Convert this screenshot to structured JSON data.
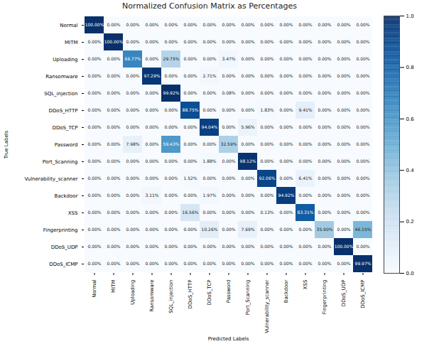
{
  "chart_data": {
    "type": "heatmap",
    "title": "Normalized Confusion Matrix as Percentages",
    "x_label": "Predicted Labels",
    "y_label": "True Labels",
    "categories": [
      "Normal",
      "MITM",
      "Uploading",
      "Ransomware",
      "SQL_injection",
      "DDoS_HTTP",
      "DDoS_TCP",
      "Password",
      "Port_Scanning",
      "Vulnerability_scanner",
      "Backdoor",
      "XSS",
      "Fingerprinting",
      "DDoS_UDP",
      "DDoS_ICMP"
    ],
    "cells": [
      [
        1,
        0,
        0,
        0,
        0,
        0,
        0,
        0,
        0,
        0,
        0,
        0,
        0,
        0,
        0
      ],
      [
        0,
        1,
        0,
        0,
        0,
        0,
        0,
        0,
        0,
        0,
        0,
        0,
        0,
        0,
        0
      ],
      [
        0,
        0,
        0.6677,
        0,
        0.2975,
        0,
        0,
        0.0347,
        0,
        0,
        0,
        0,
        0,
        0,
        0
      ],
      [
        0,
        0,
        0,
        0.9729,
        0,
        0,
        0.0271,
        0,
        0,
        0,
        0,
        0,
        0,
        0,
        0
      ],
      [
        0,
        0,
        0,
        0,
        0.9992,
        0,
        0,
        0.0008,
        0,
        0,
        0,
        0,
        0,
        0,
        0
      ],
      [
        0,
        0,
        0,
        0,
        0,
        0.8875,
        0,
        0,
        0,
        0.0183,
        0,
        0.0941,
        0,
        0,
        0
      ],
      [
        0,
        0,
        0,
        0,
        0,
        0,
        0.9404,
        0,
        0.0596,
        0,
        0,
        0,
        0,
        0,
        0
      ],
      [
        0,
        0,
        0.0798,
        0,
        0.5943,
        0,
        0,
        0.3259,
        0,
        0,
        0,
        0,
        0,
        0,
        0
      ],
      [
        0,
        0,
        0,
        0,
        0,
        0,
        0.0188,
        0,
        0.9812,
        0,
        0,
        0,
        0,
        0,
        0
      ],
      [
        0,
        0,
        0,
        0,
        0,
        0.0152,
        0,
        0,
        0,
        0.9206,
        0,
        0.0641,
        0,
        0,
        0
      ],
      [
        0,
        0,
        0,
        0.0311,
        0,
        0,
        0.0197,
        0,
        0,
        0,
        0.9492,
        0,
        0,
        0,
        0
      ],
      [
        0,
        0,
        0,
        0,
        0,
        0.1656,
        0,
        0,
        0,
        0.0013,
        0,
        0.8331,
        0,
        0,
        0
      ],
      [
        0,
        0,
        0,
        0,
        0,
        0,
        0.1026,
        0,
        0.0769,
        0,
        0,
        0,
        0.359,
        0,
        0.4615
      ],
      [
        0,
        0,
        0,
        0,
        0,
        0,
        0,
        0,
        0,
        0,
        0,
        0,
        0,
        1,
        0
      ],
      [
        0,
        0,
        0,
        0,
        0,
        0,
        0,
        0,
        0,
        0,
        0,
        0,
        0,
        0,
        0.9997
      ]
    ],
    "cell_labels": [
      [
        "100.00%",
        "0.00%",
        "0.00%",
        "0.00%",
        "0.00%",
        "0.00%",
        "0.00%",
        "0.00%",
        "0.00%",
        "0.00%",
        "0.00%",
        "0.00%",
        "0.00%",
        "0.00%",
        "0.00%"
      ],
      [
        "0.00%",
        "100.00%",
        "0.00%",
        "0.00%",
        "0.00%",
        "0.00%",
        "0.00%",
        "0.00%",
        "0.00%",
        "0.00%",
        "0.00%",
        "0.00%",
        "0.00%",
        "0.00%",
        "0.00%"
      ],
      [
        "0.00%",
        "0.00%",
        "66.77%",
        "0.00%",
        "29.75%",
        "0.00%",
        "0.00%",
        "3.47%",
        "0.00%",
        "0.00%",
        "0.00%",
        "0.00%",
        "0.00%",
        "0.00%",
        "0.00%"
      ],
      [
        "0.00%",
        "0.00%",
        "0.00%",
        "97.29%",
        "0.00%",
        "0.00%",
        "2.71%",
        "0.00%",
        "0.00%",
        "0.00%",
        "0.00%",
        "0.00%",
        "0.00%",
        "0.00%",
        "0.00%"
      ],
      [
        "0.00%",
        "0.00%",
        "0.00%",
        "0.00%",
        "99.92%",
        "0.00%",
        "0.00%",
        "0.08%",
        "0.00%",
        "0.00%",
        "0.00%",
        "0.00%",
        "0.00%",
        "0.00%",
        "0.00%"
      ],
      [
        "0.00%",
        "0.00%",
        "0.00%",
        "0.00%",
        "0.00%",
        "88.75%",
        "0.00%",
        "0.00%",
        "0.00%",
        "1.83%",
        "0.00%",
        "9.41%",
        "0.00%",
        "0.00%",
        "0.00%"
      ],
      [
        "0.00%",
        "0.00%",
        "0.00%",
        "0.00%",
        "0.00%",
        "0.00%",
        "94.04%",
        "0.00%",
        "5.96%",
        "0.00%",
        "0.00%",
        "0.00%",
        "0.00%",
        "0.00%",
        "0.00%"
      ],
      [
        "0.00%",
        "0.00%",
        "7.98%",
        "0.00%",
        "59.43%",
        "0.00%",
        "0.00%",
        "32.59%",
        "0.00%",
        "0.00%",
        "0.00%",
        "0.00%",
        "0.00%",
        "0.00%",
        "0.00%"
      ],
      [
        "0.00%",
        "0.00%",
        "0.00%",
        "0.00%",
        "0.00%",
        "0.00%",
        "1.88%",
        "0.00%",
        "98.12%",
        "0.00%",
        "0.00%",
        "0.00%",
        "0.00%",
        "0.00%",
        "0.00%"
      ],
      [
        "0.00%",
        "0.00%",
        "0.00%",
        "0.00%",
        "0.00%",
        "1.52%",
        "0.00%",
        "0.00%",
        "0.00%",
        "92.06%",
        "0.00%",
        "6.41%",
        "0.00%",
        "0.00%",
        "0.00%"
      ],
      [
        "0.00%",
        "0.00%",
        "0.00%",
        "3.11%",
        "0.00%",
        "0.00%",
        "1.97%",
        "0.00%",
        "0.00%",
        "0.00%",
        "94.92%",
        "0.00%",
        "0.00%",
        "0.00%",
        "0.00%"
      ],
      [
        "0.00%",
        "0.00%",
        "0.00%",
        "0.00%",
        "0.00%",
        "16.56%",
        "0.00%",
        "0.00%",
        "0.00%",
        "0.13%",
        "0.00%",
        "83.31%",
        "0.00%",
        "0.00%",
        "0.00%"
      ],
      [
        "0.00%",
        "0.00%",
        "0.00%",
        "0.00%",
        "0.00%",
        "0.00%",
        "10.26%",
        "0.00%",
        "7.69%",
        "0.00%",
        "0.00%",
        "0.00%",
        "35.90%",
        "0.00%",
        "46.15%"
      ],
      [
        "0.00%",
        "0.00%",
        "0.00%",
        "0.00%",
        "0.00%",
        "0.00%",
        "0.00%",
        "0.00%",
        "0.00%",
        "0.00%",
        "0.00%",
        "0.00%",
        "0.00%",
        "100.00%",
        "0.00%"
      ],
      [
        "0.00%",
        "0.00%",
        "0.00%",
        "0.00%",
        "0.00%",
        "0.00%",
        "0.00%",
        "0.00%",
        "0.00%",
        "0.00%",
        "0.00%",
        "0.00%",
        "0.00%",
        "0.00%",
        "99.97%"
      ]
    ],
    "data_labels": true,
    "color": "blues",
    "colorbar": {
      "range": [
        0,
        1
      ],
      "ticks": [
        {
          "value": 0,
          "label": "0.0"
        },
        {
          "value": 0.2,
          "label": "0.2"
        },
        {
          "value": 0.4,
          "label": "0.4"
        },
        {
          "value": 0.6,
          "label": "0.6"
        },
        {
          "value": 0.8,
          "label": "0.8"
        },
        {
          "value": 1,
          "label": "1.0"
        }
      ]
    }
  }
}
